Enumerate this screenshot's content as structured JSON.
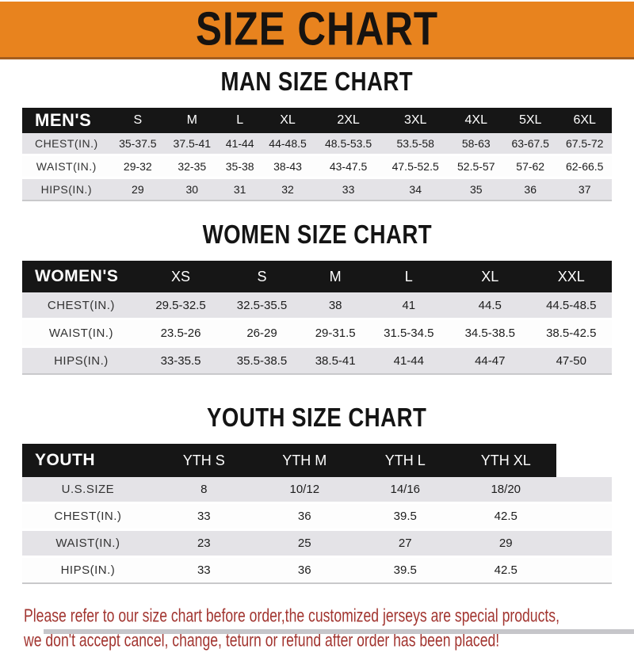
{
  "banner": {
    "title": "SIZE CHART"
  },
  "colors": {
    "banner_bg": "#E8831E",
    "banner_border_bottom": "#A35E1F",
    "table_header_bg": "#161616",
    "table_header_text": "#FFFFFF",
    "row_stripe": "#E4E3E7",
    "row_plain": "#FDFDFD",
    "footer_text": "#A23530"
  },
  "sections": [
    {
      "title": "MAN SIZE CHART",
      "header_label": "MEN'S",
      "columns": [
        "S",
        "M",
        "L",
        "XL",
        "2XL",
        "3XL",
        "4XL",
        "5XL",
        "6XL"
      ],
      "rows": [
        {
          "label": "CHEST(IN.)",
          "values": [
            "35-37.5",
            "37.5-41",
            "41-44",
            "44-48.5",
            "48.5-53.5",
            "53.5-58",
            "58-63",
            "63-67.5",
            "67.5-72"
          ]
        },
        {
          "label": "WAIST(IN.)",
          "values": [
            "29-32",
            "32-35",
            "35-38",
            "38-43",
            "43-47.5",
            "47.5-52.5",
            "52.5-57",
            "57-62",
            "62-66.5"
          ]
        },
        {
          "label": "HIPS(IN.)",
          "values": [
            "29",
            "30",
            "31",
            "32",
            "33",
            "34",
            "35",
            "36",
            "37"
          ]
        }
      ]
    },
    {
      "title": "WOMEN SIZE CHART",
      "header_label": "WOMEN'S",
      "columns": [
        "XS",
        "S",
        "M",
        "L",
        "XL",
        "XXL"
      ],
      "rows": [
        {
          "label": "CHEST(IN.)",
          "values": [
            "29.5-32.5",
            "32.5-35.5",
            "38",
            "41",
            "44.5",
            "44.5-48.5"
          ]
        },
        {
          "label": "WAIST(IN.)",
          "values": [
            "23.5-26",
            "26-29",
            "29-31.5",
            "31.5-34.5",
            "34.5-38.5",
            "38.5-42.5"
          ]
        },
        {
          "label": "HIPS(IN.)",
          "values": [
            "33-35.5",
            "35.5-38.5",
            "38.5-41",
            "41-44",
            "44-47",
            "47-50"
          ]
        }
      ]
    },
    {
      "title": "YOUTH SIZE CHART",
      "header_label": "YOUTH",
      "columns": [
        "YTH S",
        "YTH M",
        "YTH L",
        "YTH XL"
      ],
      "rows": [
        {
          "label": "U.S.SIZE",
          "values": [
            "8",
            "10/12",
            "14/16",
            "18/20"
          ]
        },
        {
          "label": "CHEST(IN.)",
          "values": [
            "33",
            "36",
            "39.5",
            "42.5"
          ]
        },
        {
          "label": "WAIST(IN.)",
          "values": [
            "23",
            "25",
            "27",
            "29"
          ]
        },
        {
          "label": "HIPS(IN.)",
          "values": [
            "33",
            "36",
            "39.5",
            "42.5"
          ]
        }
      ]
    }
  ],
  "footer": {
    "line1": "Please refer to our size chart before order,the customized jerseys are special products,",
    "line2": "we don't accept cancel, change, teturn or refund after order has been placed!"
  }
}
